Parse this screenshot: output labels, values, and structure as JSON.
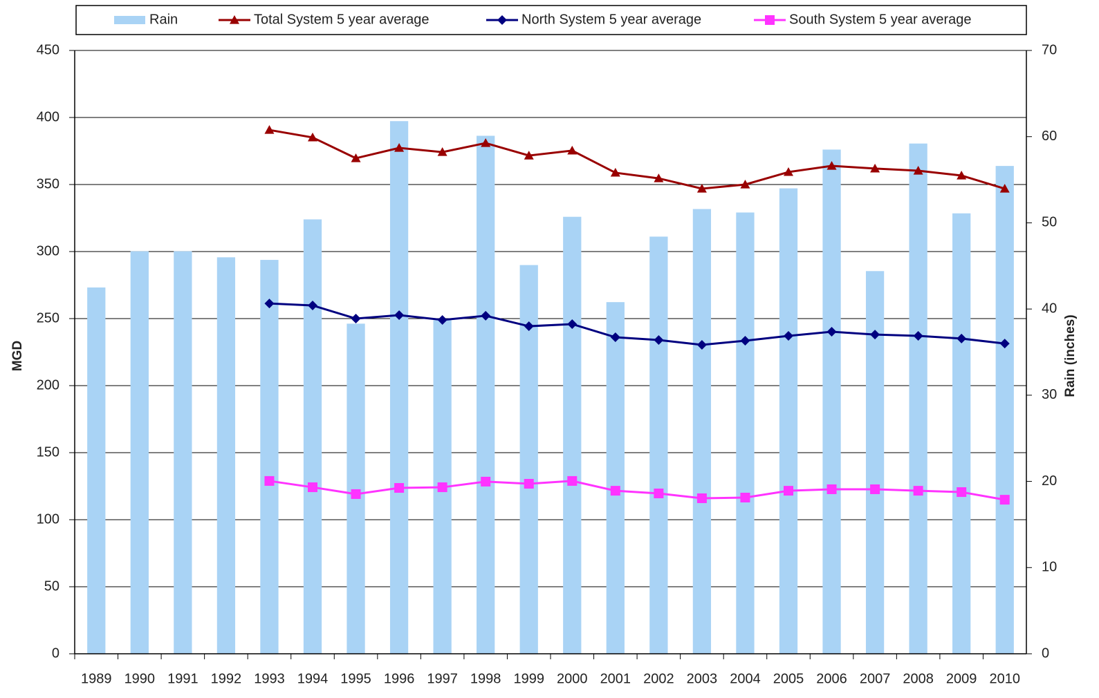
{
  "chart_data": {
    "type": "bar",
    "y_label": "MGD",
    "y2_label": "Rain (inches)",
    "categories": [
      "1989",
      "1990",
      "1991",
      "1992",
      "1993",
      "1994",
      "1995",
      "1996",
      "1997",
      "1998",
      "1999",
      "2000",
      "2001",
      "2002",
      "2003",
      "2004",
      "2005",
      "2006",
      "2007",
      "2008",
      "2009",
      "2010"
    ],
    "ylim": [
      0,
      450
    ],
    "yticks": [
      0,
      50,
      100,
      150,
      200,
      250,
      300,
      350,
      400,
      450
    ],
    "y2lim": [
      0,
      70
    ],
    "y2ticks": [
      0,
      10,
      20,
      30,
      40,
      50,
      60,
      70
    ],
    "grid": true,
    "legend": "top",
    "series": [
      {
        "name": "Rain",
        "type": "bar",
        "axis": "y2",
        "color": "#a9d3f5",
        "values": [
          42.5,
          46.7,
          46.7,
          46.0,
          45.7,
          50.4,
          38.3,
          61.8,
          38.7,
          60.1,
          45.1,
          50.7,
          40.8,
          48.4,
          51.6,
          51.2,
          54.0,
          58.5,
          44.4,
          59.2,
          51.1,
          56.6
        ]
      },
      {
        "name": "Total System 5 year average",
        "type": "line",
        "marker": "triangle",
        "color": "#990000",
        "values": [
          null,
          null,
          null,
          null,
          390.7,
          385.1,
          369.6,
          377.3,
          374.2,
          380.9,
          371.6,
          375.3,
          358.8,
          354.6,
          346.9,
          350.0,
          359.3,
          363.9,
          361.9,
          360.3,
          356.7,
          346.9
        ]
      },
      {
        "name": "North System 5 year average",
        "type": "line",
        "marker": "diamond",
        "color": "#000080",
        "values": [
          null,
          null,
          null,
          null,
          261.3,
          259.8,
          250.0,
          252.6,
          249.0,
          252.1,
          244.3,
          245.9,
          236.1,
          234.0,
          230.4,
          233.5,
          237.1,
          240.2,
          238.1,
          237.1,
          235.1,
          231.4
        ]
      },
      {
        "name": "South System 5 year average",
        "type": "line",
        "marker": "square",
        "color": "#ff33ff",
        "values": [
          null,
          null,
          null,
          null,
          128.9,
          124.2,
          119.1,
          123.7,
          124.2,
          128.4,
          126.8,
          128.9,
          121.6,
          119.6,
          116.0,
          116.5,
          121.6,
          122.7,
          122.7,
          121.6,
          120.6,
          114.9
        ]
      }
    ]
  }
}
